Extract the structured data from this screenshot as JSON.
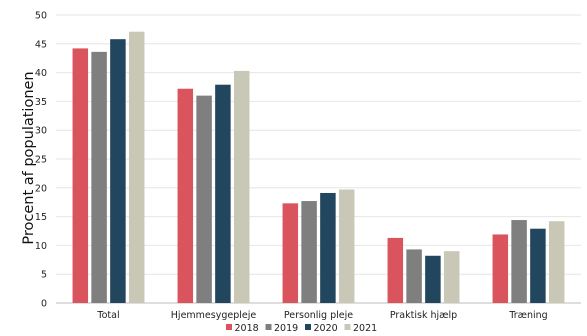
{
  "chart_data": {
    "type": "bar",
    "ylabel": "Procent af populationen",
    "xlabel": "",
    "ylim": [
      0,
      50
    ],
    "yticks": [
      0,
      5,
      10,
      15,
      20,
      25,
      30,
      35,
      40,
      45,
      50
    ],
    "grid": true,
    "legend_position": "bottom",
    "categories": [
      "Total",
      "Hjemmesygepleje",
      "Personlig pleje",
      "Praktisk hjælp",
      "Træning"
    ],
    "series": [
      {
        "name": "2018",
        "color": "#d9545c",
        "values": [
          44.2,
          37.2,
          17.3,
          11.3,
          11.9
        ]
      },
      {
        "name": "2019",
        "color": "#7f7f7f",
        "values": [
          43.6,
          36.0,
          17.7,
          9.3,
          14.4
        ]
      },
      {
        "name": "2020",
        "color": "#22465e",
        "values": [
          45.8,
          37.9,
          19.1,
          8.2,
          12.9
        ]
      },
      {
        "name": "2021",
        "color": "#c9c8b6",
        "values": [
          47.1,
          40.3,
          19.7,
          9.0,
          14.2
        ]
      }
    ]
  }
}
